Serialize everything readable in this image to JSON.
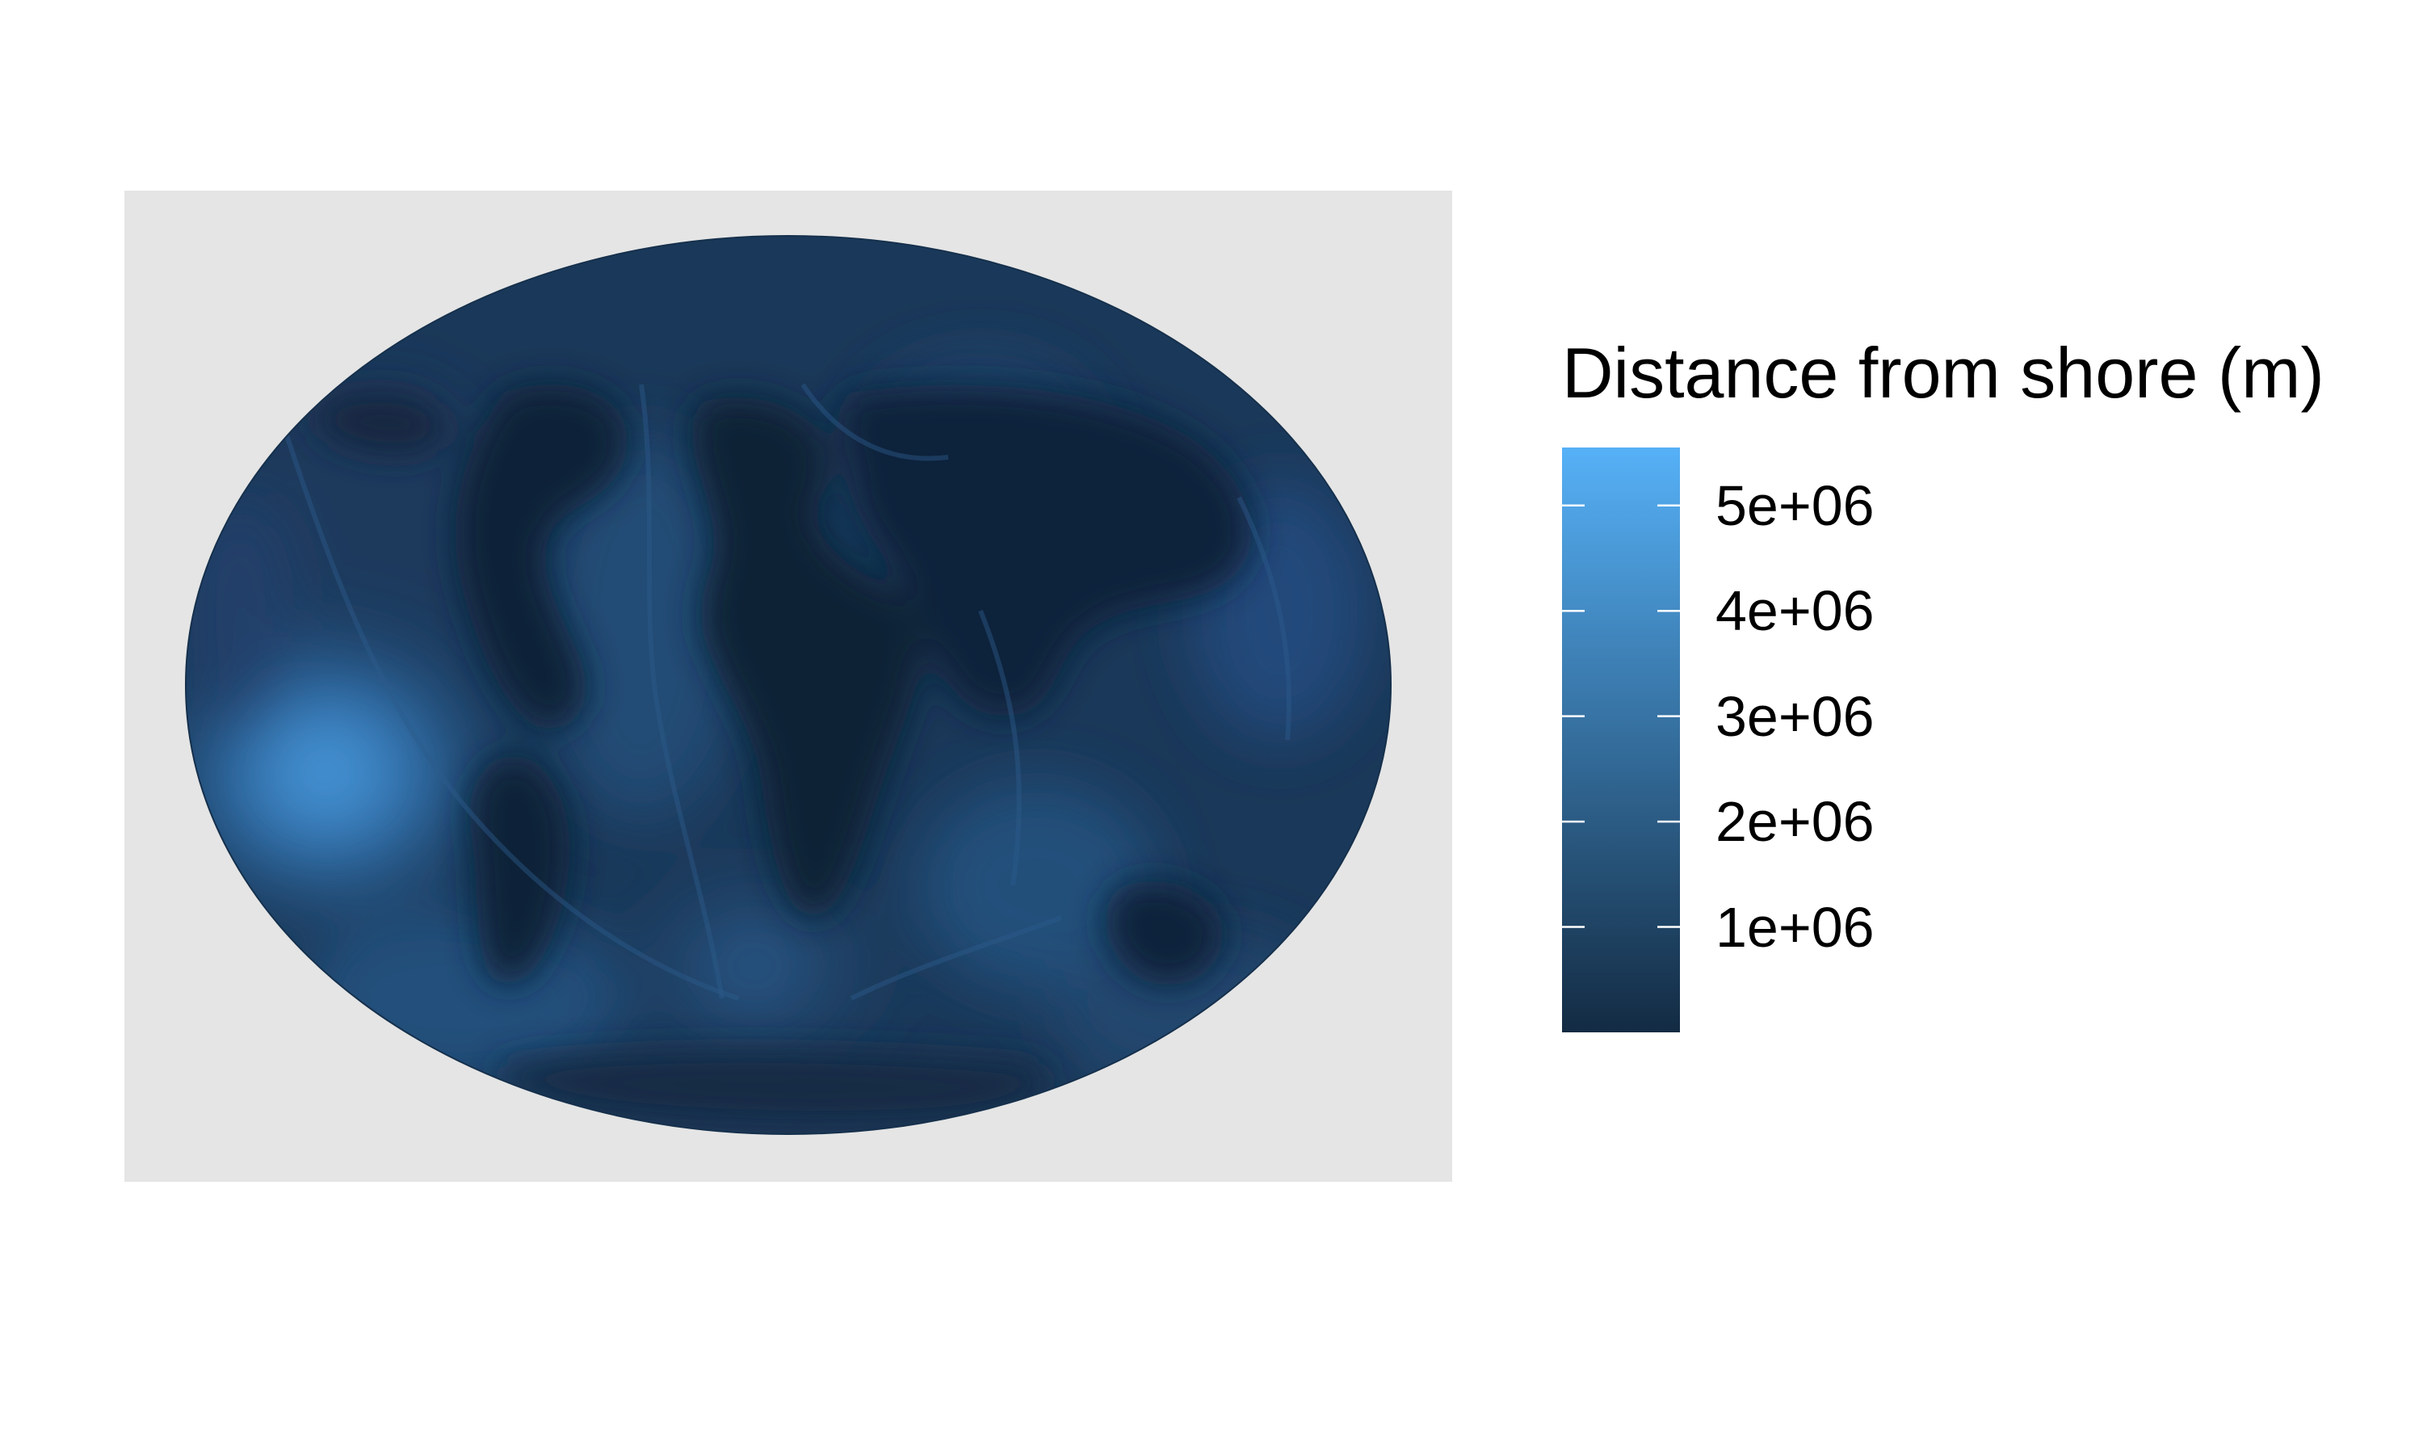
{
  "legend": {
    "title": "Distance from shore (m)",
    "ticks": [
      {
        "value": 5000000,
        "label": "5e+06"
      },
      {
        "value": 4000000,
        "label": "4e+06"
      },
      {
        "value": 3000000,
        "label": "3e+06"
      },
      {
        "value": 2000000,
        "label": "2e+06"
      },
      {
        "value": 1000000,
        "label": "1e+06"
      }
    ],
    "range": [
      0,
      5550000
    ],
    "low_color": "#132B43",
    "high_color": "#56B1F7"
  },
  "map": {
    "projection": "mollweide",
    "panel_background": "#E5E5E5",
    "ocean_base_color": "#16304A"
  }
}
